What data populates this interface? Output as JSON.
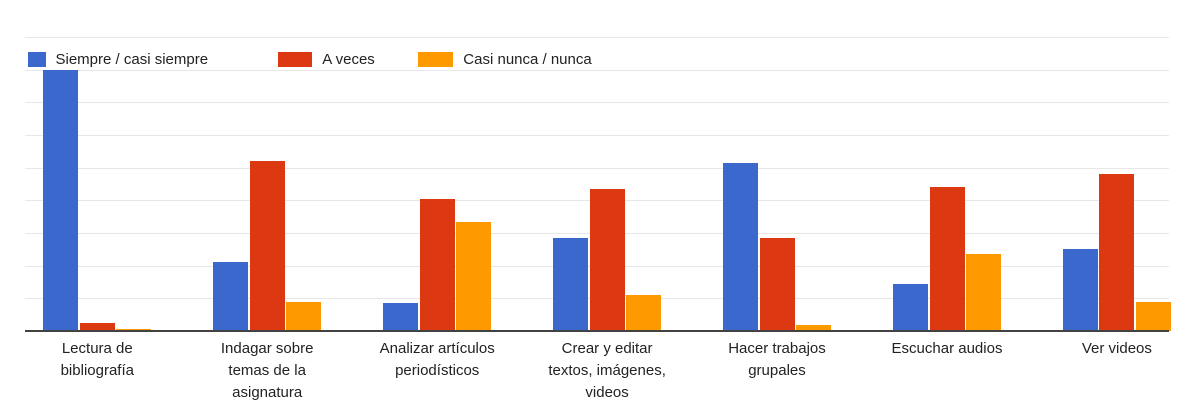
{
  "chart_data": {
    "type": "bar",
    "title": "",
    "legend_position": "top",
    "grid": true,
    "y_axis_labels_visible": false,
    "ylim": [
      0,
      90
    ],
    "gridline_step": 10,
    "xlabel": "",
    "ylabel": "",
    "categories": [
      "Lectura de bibliografía",
      "Indagar sobre temas de la asignatura",
      "Analizar artículos periodísticos",
      "Crear y editar textos, imágenes, videos",
      "Hacer trabajos grupales",
      "Escuchar audios",
      "Ver videos"
    ],
    "category_label_lines": [
      [
        "Lectura de",
        "bibliografía"
      ],
      [
        "Indagar sobre",
        "temas de la",
        "asignatura"
      ],
      [
        "Analizar artículos",
        "periodísticos"
      ],
      [
        "Crear y editar",
        "textos, imágenes,",
        "videos"
      ],
      [
        "Hacer trabajos",
        "grupales"
      ],
      [
        "Escuchar audios"
      ],
      [
        "Ver videos"
      ]
    ],
    "series": [
      {
        "name": "Siempre / casi siempre",
        "color": "#3A68CC",
        "values": [
          80,
          21,
          8.5,
          28.5,
          51.5,
          14.5,
          25
        ]
      },
      {
        "name": "A veces",
        "color": "#DC3912",
        "values": [
          2.5,
          52,
          40.5,
          43.5,
          28.5,
          44,
          48
        ]
      },
      {
        "name": "Casi nunca / nunca",
        "color": "#FF9900",
        "values": [
          0.5,
          9,
          33.5,
          11,
          2,
          23.5,
          9
        ]
      }
    ]
  },
  "colors": {
    "background": "#FFFFFF",
    "gridline": "#E7E7E7",
    "axis_line": "#424242",
    "text": "#222222"
  }
}
